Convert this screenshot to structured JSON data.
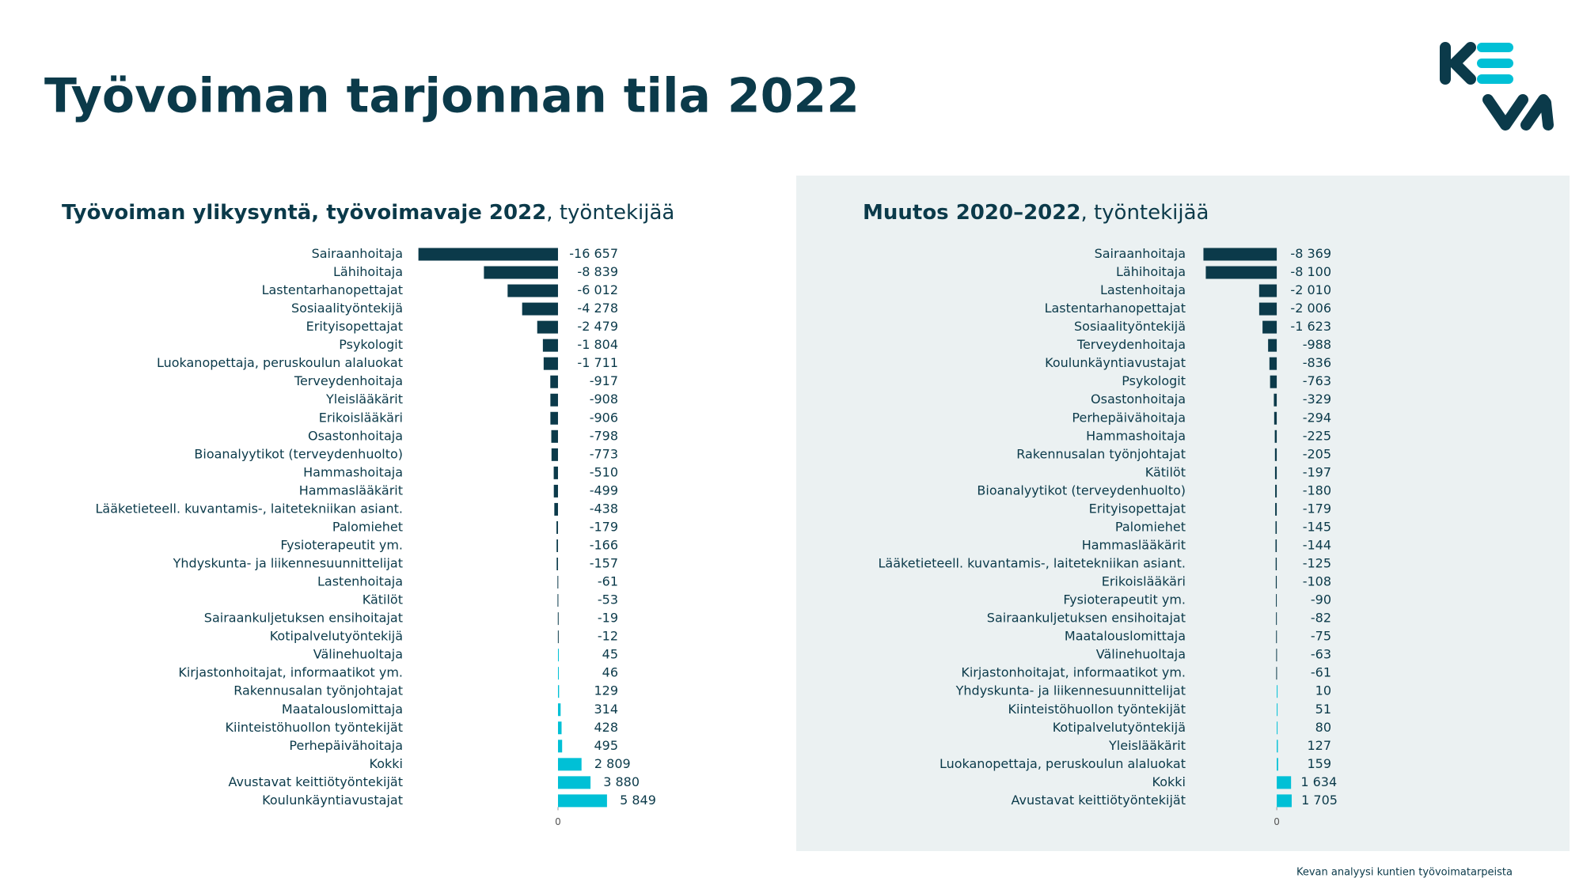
{
  "title": "Työvoiman tarjonnan tila 2022",
  "footer": "Kevan analyysi kuntien työvoimatarpeista",
  "chart_data": [
    {
      "type": "bar",
      "orientation": "horizontal",
      "title": "Työvoiman ylikysyntä, työvoimavaje 2022",
      "title_suffix": ", työntekijää",
      "colors": {
        "negative": "#0b3a4a",
        "positive": "#00c0d6"
      },
      "xlim": [
        -17000,
        6000
      ],
      "xticks": [
        0
      ],
      "categories": [
        "Sairaanhoitaja",
        "Lähihoitaja",
        "Lastentarhanopettajat",
        "Sosiaalityöntekijä",
        "Erityisopettajat",
        "Psykologit",
        "Luokanopettaja, peruskoulun alaluokat",
        "Terveydenhoitaja",
        "Yleislääkärit",
        "Erikoislääkäri",
        "Osastonhoitaja",
        "Bioanalyytikot (terveydenhuolto)",
        "Hammashoitaja",
        "Hammaslääkärit",
        "Lääketieteell. kuvantamis-, laitetekniikan asiant.",
        "Palomiehet",
        "Fysioterapeutit ym.",
        "Yhdyskunta- ja liikennesuunnittelijat",
        "Lastenhoitaja",
        "Kätilöt",
        "Sairaankuljetuksen ensihoitajat",
        "Kotipalvelutyöntekijä",
        "Välinehuoltaja",
        "Kirjastonhoitajat, informaatikot ym.",
        "Rakennusalan työnjohtajat",
        "Maatalouslomittaja",
        "Kiinteistöhuollon työntekijät",
        "Perhepäivähoitaja",
        "Kokki",
        "Avustavat keittiötyöntekijät",
        "Koulunkäyntiavustajat"
      ],
      "values": [
        -16657,
        -8839,
        -6012,
        -4278,
        -2479,
        -1804,
        -1711,
        -917,
        -908,
        -906,
        -798,
        -773,
        -510,
        -499,
        -438,
        -179,
        -166,
        -157,
        -61,
        -53,
        -19,
        -12,
        45,
        46,
        129,
        314,
        428,
        495,
        2809,
        3880,
        5849
      ],
      "value_labels": [
        "-16 657",
        "-8 839",
        "-6 012",
        "-4 278",
        "-2 479",
        "-1 804",
        "-1 711",
        "-917",
        "-908",
        "-906",
        "-798",
        "-773",
        "-510",
        "-499",
        "-438",
        "-179",
        "-166",
        "-157",
        "-61",
        "-53",
        "-19",
        "-12",
        "45",
        "46",
        "129",
        "314",
        "428",
        "495",
        "2 809",
        "3 880",
        "5 849"
      ]
    },
    {
      "type": "bar",
      "orientation": "horizontal",
      "title": "Muutos 2020–2022",
      "title_suffix": ", työntekijää",
      "colors": {
        "negative": "#0b3a4a",
        "positive": "#00c0d6"
      },
      "xlim": [
        -8500,
        1800
      ],
      "xticks": [
        0
      ],
      "categories": [
        "Sairaanhoitaja",
        "Lähihoitaja",
        "Lastenhoitaja",
        "Lastentarhanopettajat",
        "Sosiaalityöntekijä",
        "Terveydenhoitaja",
        "Koulunkäyntiavustajat",
        "Psykologit",
        "Osastonhoitaja",
        "Perhepäivähoitaja",
        "Hammashoitaja",
        "Rakennusalan työnjohtajat",
        "Kätilöt",
        "Bioanalyytikot (terveydenhuolto)",
        "Erityisopettajat",
        "Palomiehet",
        "Hammaslääkärit",
        "Lääketieteell. kuvantamis-, laitetekniikan asiant.",
        "Erikoislääkäri",
        "Fysioterapeutit ym.",
        "Sairaankuljetuksen ensihoitajat",
        "Maatalouslomittaja",
        "Välinehuoltaja",
        "Kirjastonhoitajat, informaatikot ym.",
        "Yhdyskunta- ja liikennesuunnittelijat",
        "Kiinteistöhuollon työntekijät",
        "Kotipalvelutyöntekijä",
        "Yleislääkärit",
        "Luokanopettaja, peruskoulun alaluokat",
        "Kokki",
        "Avustavat keittiötyöntekijät"
      ],
      "values": [
        -8369,
        -8100,
        -2010,
        -2006,
        -1623,
        -988,
        -836,
        -763,
        -329,
        -294,
        -225,
        -205,
        -197,
        -180,
        -179,
        -145,
        -144,
        -125,
        -108,
        -90,
        -82,
        -75,
        -63,
        -61,
        10,
        51,
        80,
        127,
        159,
        1634,
        1705
      ],
      "value_labels": [
        "-8 369",
        "-8 100",
        "-2 010",
        "-2 006",
        "-1 623",
        "-988",
        "-836",
        "-763",
        "-329",
        "-294",
        "-225",
        "-205",
        "-197",
        "-180",
        "-179",
        "-145",
        "-144",
        "-125",
        "-108",
        "-90",
        "-82",
        "-75",
        "-63",
        "-61",
        "10",
        "51",
        "80",
        "127",
        "159",
        "1 634",
        "1 705"
      ]
    }
  ]
}
